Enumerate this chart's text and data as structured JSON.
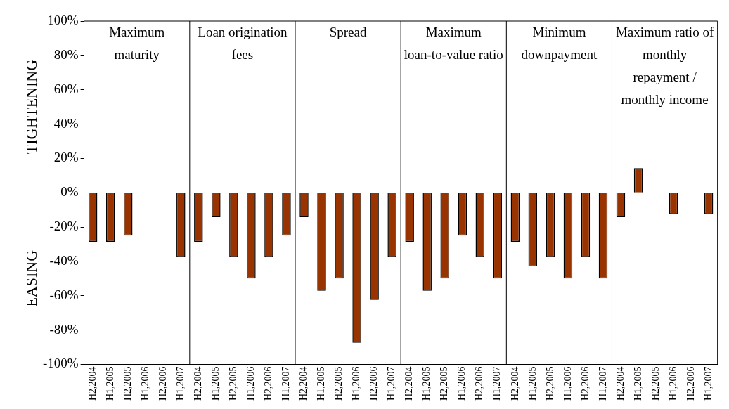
{
  "chart_data": {
    "type": "bar",
    "ylabel": "TIGHTENING",
    "categories": [
      "H2,2004",
      "H1,2005",
      "H2,2005",
      "H1,2006",
      "H2,2006",
      "H1,2007",
      "H2,2004",
      "H1,2005",
      "H2,2005",
      "H1,2006",
      "H2,2006",
      "H1,2007",
      "H2,2004",
      "H1,2005",
      "H2,2005",
      "H1,2006",
      "H2,2006",
      "H1,2007",
      "H2,2004",
      "H1,2005",
      "H2,2005",
      "H1,2006",
      "H2,2006",
      "H1,2007",
      "H2,2004",
      "H1,2005",
      "H2,2005",
      "H1,2006",
      "H2,2006",
      "H1,2007",
      "H2,2004",
      "H1,2005",
      "H2,2005",
      "H1,2006",
      "H2,2006",
      "H1,2007"
    ],
    "values": [
      -28.6,
      -28.6,
      -25,
      null,
      null,
      -37.5,
      -28.6,
      -14.3,
      -37.5,
      -50,
      -37.5,
      -25,
      -14.3,
      -57.1,
      -50,
      -87.5,
      -62.5,
      -37.5,
      -28.6,
      -57.1,
      -50,
      -25,
      -37.5,
      -50,
      -28.6,
      -42.9,
      -37.5,
      -50,
      -37.5,
      -50,
      -14.3,
      14.3,
      null,
      -12.5,
      null,
      -12.5
    ],
    "color": "#993300",
    "ylim": [
      -100,
      100
    ],
    "yticks": [
      {
        "value": -100,
        "label": "-100%"
      },
      {
        "value": -80,
        "label": "-80%"
      },
      {
        "value": -60,
        "label": "-60%"
      },
      {
        "value": -40,
        "label": "-40%"
      },
      {
        "value": -20,
        "label": "-20%"
      },
      {
        "value": 0,
        "label": "0%"
      },
      {
        "value": 20,
        "label": "20%"
      },
      {
        "value": 40,
        "label": "40%"
      },
      {
        "value": 60,
        "label": "60%"
      },
      {
        "value": 80,
        "label": "80%"
      },
      {
        "value": 100,
        "label": "100%"
      }
    ],
    "annotations": [
      "Maximum maturity",
      "Loan origination fees",
      "Spread",
      "Maximum loan-to-value ratio",
      "Minimum downpayment",
      "Maximum ratio of monthly repayment / monthly income",
      "EASING"
    ],
    "legend": false
  }
}
